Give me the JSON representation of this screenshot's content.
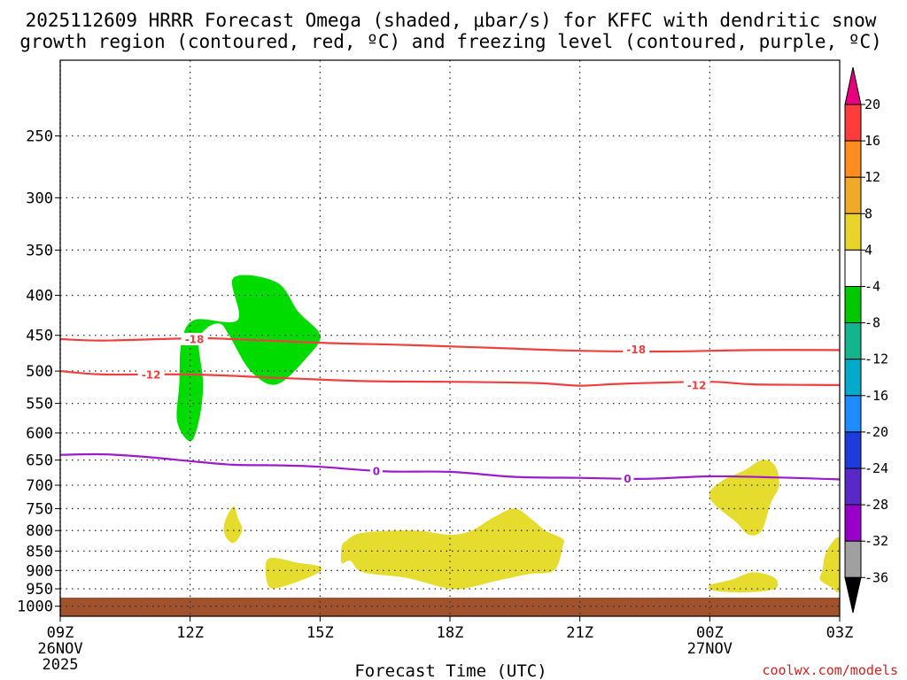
{
  "chart_data": {
    "type": "heatmap",
    "title_line1": "2025112609 HRRR Forecast Omega (shaded, μbar/s) for KFFC with dendritic snow",
    "title_line2": "growth region (contoured, red, ºC) and freezing level (contoured, purple, ºC)",
    "xlabel": "Forecast Time (UTC)",
    "credit": "coolwx.com/models",
    "x_range_hours": [
      0,
      18
    ],
    "x_ticks": [
      {
        "hour": 0,
        "label": "09Z",
        "sub1": "26NOV",
        "sub2": "2025"
      },
      {
        "hour": 3,
        "label": "12Z",
        "sub1": "",
        "sub2": ""
      },
      {
        "hour": 6,
        "label": "15Z",
        "sub1": "",
        "sub2": ""
      },
      {
        "hour": 9,
        "label": "18Z",
        "sub1": "",
        "sub2": ""
      },
      {
        "hour": 12,
        "label": "21Z",
        "sub1": "",
        "sub2": ""
      },
      {
        "hour": 15,
        "label": "00Z",
        "sub1": "27NOV",
        "sub2": ""
      },
      {
        "hour": 18,
        "label": "03Z",
        "sub1": "",
        "sub2": ""
      }
    ],
    "y_range_hpa": [
      200,
      1030
    ],
    "y_ticks": [
      "250",
      "300",
      "350",
      "400",
      "450",
      "500",
      "550",
      "600",
      "650",
      "700",
      "750",
      "800",
      "850",
      "900",
      "950",
      "1000"
    ],
    "colorbar": {
      "levels": [
        "20",
        "16",
        "12",
        "8",
        "4",
        "-4",
        "-8",
        "-12",
        "-16",
        "-20",
        "-24",
        "-28",
        "-32",
        "-36"
      ],
      "colors": [
        "#ff3c3c",
        "#ff8c1e",
        "#f0aa28",
        "#e8d42a",
        "#ffffff",
        "#00c800",
        "#14b48c",
        "#00aac8",
        "#1e8cff",
        "#1e3cdc",
        "#5a28c8",
        "#9600c8",
        "#a0a0a0"
      ],
      "top_arrow_color": "#e6007e",
      "bottom_arrow_color": "#000000"
    },
    "ground": {
      "p_top": 975,
      "p_bottom": 1030,
      "color": "#a0522d"
    },
    "contours": [
      {
        "name": "-18 C",
        "color": "#ee4040",
        "points": [
          [
            0,
            455
          ],
          [
            1,
            457
          ],
          [
            3,
            454
          ],
          [
            4,
            455
          ],
          [
            6,
            460
          ],
          [
            8,
            463
          ],
          [
            10,
            467
          ],
          [
            12,
            471
          ],
          [
            14,
            472
          ],
          [
            16,
            470
          ],
          [
            18,
            470
          ]
        ],
        "labels": [
          {
            "text": "-18",
            "hour": 3.1,
            "p": 455
          },
          {
            "text": "-18",
            "hour": 13.3,
            "p": 469
          }
        ]
      },
      {
        "name": "-12 C",
        "color": "#ee4040",
        "points": [
          [
            0,
            500
          ],
          [
            1,
            505
          ],
          [
            3,
            505
          ],
          [
            5,
            510
          ],
          [
            7,
            515
          ],
          [
            9,
            516
          ],
          [
            11,
            518
          ],
          [
            12,
            522
          ],
          [
            13,
            519
          ],
          [
            15,
            516
          ],
          [
            16,
            520
          ],
          [
            18,
            521
          ]
        ],
        "labels": [
          {
            "text": "-12",
            "hour": 2.1,
            "p": 505
          },
          {
            "text": "-12",
            "hour": 14.7,
            "p": 521
          }
        ]
      },
      {
        "name": "0 C freezing level",
        "color": "#9c1cc8",
        "points": [
          [
            0,
            640
          ],
          [
            1,
            639
          ],
          [
            2,
            644
          ],
          [
            3,
            652
          ],
          [
            4,
            659
          ],
          [
            5,
            660
          ],
          [
            6,
            663
          ],
          [
            7.5,
            672
          ],
          [
            9,
            673
          ],
          [
            10.5,
            683
          ],
          [
            12,
            685
          ],
          [
            13.5,
            687
          ],
          [
            15,
            682
          ],
          [
            16.5,
            684
          ],
          [
            18,
            688
          ]
        ],
        "labels": [
          {
            "text": "0",
            "hour": 7.3,
            "p": 671
          },
          {
            "text": "0",
            "hour": 13.1,
            "p": 686
          }
        ]
      }
    ],
    "shaded_regions": [
      {
        "value_range": "-4 to -8",
        "color": "#00dc00",
        "points": [
          [
            2.7,
            580
          ],
          [
            2.75,
            520
          ],
          [
            2.8,
            460
          ],
          [
            3.1,
            430
          ],
          [
            4.1,
            430
          ],
          [
            4.0,
            380
          ],
          [
            5.0,
            385
          ],
          [
            5.5,
            420
          ],
          [
            6.0,
            450
          ],
          [
            5.7,
            480
          ],
          [
            5.0,
            520
          ],
          [
            4.4,
            500
          ],
          [
            3.9,
            450
          ],
          [
            3.7,
            435
          ],
          [
            3.4,
            440
          ],
          [
            3.2,
            460
          ],
          [
            3.3,
            520
          ],
          [
            3.2,
            580
          ],
          [
            3.0,
            615
          ]
        ]
      },
      {
        "value_range": "4 to 8",
        "color": "#e6dc2e",
        "points": [
          [
            4.0,
            745
          ],
          [
            4.1,
            770
          ],
          [
            4.2,
            800
          ],
          [
            4.0,
            830
          ],
          [
            3.8,
            810
          ],
          [
            3.8,
            780
          ]
        ]
      },
      {
        "value_range": "4 to 8",
        "color": "#e6dc2e",
        "points": [
          [
            4.8,
            870
          ],
          [
            5.5,
            880
          ],
          [
            6.0,
            890
          ],
          [
            5.9,
            910
          ],
          [
            5.1,
            945
          ],
          [
            4.8,
            940
          ]
        ]
      },
      {
        "value_range": "4 to 8",
        "color": "#e6dc2e",
        "points": [
          [
            6.6,
            825
          ],
          [
            7.0,
            805
          ],
          [
            8.2,
            800
          ],
          [
            9.0,
            810
          ],
          [
            9.5,
            800
          ],
          [
            10.0,
            770
          ],
          [
            10.5,
            750
          ],
          [
            10.9,
            775
          ],
          [
            11.2,
            800
          ],
          [
            11.6,
            820
          ],
          [
            11.6,
            840
          ],
          [
            11.4,
            900
          ],
          [
            10.8,
            910
          ],
          [
            10.0,
            930
          ],
          [
            9.5,
            945
          ],
          [
            9.0,
            950
          ],
          [
            8.0,
            920
          ],
          [
            7.0,
            905
          ],
          [
            6.7,
            875
          ],
          [
            6.5,
            880
          ],
          [
            6.5,
            840
          ]
        ]
      },
      {
        "value_range": "4 to 8",
        "color": "#e6dc2e",
        "points": [
          [
            15.3,
            690
          ],
          [
            15.8,
            670
          ],
          [
            16.2,
            650
          ],
          [
            16.5,
            660
          ],
          [
            16.6,
            700
          ],
          [
            16.4,
            740
          ],
          [
            16.2,
            800
          ],
          [
            15.9,
            810
          ],
          [
            15.6,
            780
          ],
          [
            15.1,
            740
          ],
          [
            15.0,
            715
          ]
        ]
      },
      {
        "value_range": "4 to 8",
        "color": "#e6dc2e",
        "points": [
          [
            15.0,
            940
          ],
          [
            15.5,
            925
          ],
          [
            16.0,
            905
          ],
          [
            16.5,
            920
          ],
          [
            16.5,
            950
          ],
          [
            15.8,
            960
          ],
          [
            15.1,
            955
          ]
        ]
      },
      {
        "value_range": "4 to 8",
        "color": "#e6dc2e",
        "points": [
          [
            18.0,
            820
          ],
          [
            17.7,
            850
          ],
          [
            17.6,
            900
          ],
          [
            17.55,
            925
          ],
          [
            17.8,
            945
          ],
          [
            18.0,
            950
          ]
        ]
      }
    ]
  }
}
